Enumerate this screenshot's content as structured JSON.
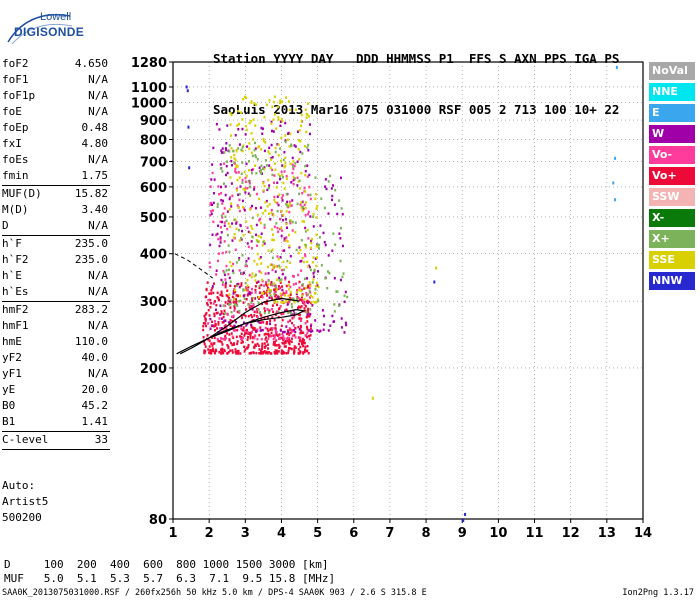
{
  "logo": {
    "line1": "Lowell",
    "line2": "DIGISONDE"
  },
  "header": {
    "line1": "Station YYYY DAY   DDD HHMMSS P1  FFS S AXN PPS IGA PS",
    "line2": "SaoLuis 2013 Mar16 075 031000 RSF 005 2 713 100 10+ 22"
  },
  "params": {
    "group1": [
      {
        "key": "foF2",
        "value": "4.650"
      },
      {
        "key": "foF1",
        "value": "N/A"
      },
      {
        "key": "foF1p",
        "value": "N/A"
      },
      {
        "key": "foE",
        "value": "N/A"
      },
      {
        "key": "foEp",
        "value": "0.48"
      },
      {
        "key": "fxI",
        "value": "4.80"
      },
      {
        "key": "foEs",
        "value": "N/A"
      },
      {
        "key": "fmin",
        "value": "1.75"
      }
    ],
    "group2": [
      {
        "key": "MUF(D)",
        "value": "15.82"
      },
      {
        "key": "M(D)",
        "value": "3.40"
      },
      {
        "key": "D",
        "value": "N/A"
      }
    ],
    "group3": [
      {
        "key": "h`F",
        "value": "235.0"
      },
      {
        "key": "h`F2",
        "value": "235.0"
      },
      {
        "key": "h`E",
        "value": "N/A"
      },
      {
        "key": "h`Es",
        "value": "N/A"
      }
    ],
    "group4": [
      {
        "key": "hmF2",
        "value": "283.2"
      },
      {
        "key": "hmF1",
        "value": "N/A"
      },
      {
        "key": "hmE",
        "value": "110.0"
      },
      {
        "key": "yF2",
        "value": "40.0"
      },
      {
        "key": "yF1",
        "value": "N/A"
      },
      {
        "key": "yE",
        "value": "20.0"
      },
      {
        "key": "B0",
        "value": "45.2"
      },
      {
        "key": "B1",
        "value": "1.41"
      }
    ],
    "clevel": {
      "key": "C-level",
      "value": "33"
    }
  },
  "auto": {
    "line1": "Auto:",
    "line2": "Artist5",
    "line3": "500200"
  },
  "legend": [
    {
      "label": "NoVal",
      "color": "#a8a8a8"
    },
    {
      "label": "NNE",
      "color": "#00e6f0"
    },
    {
      "label": "E",
      "color": "#3aa6ee"
    },
    {
      "label": "W",
      "color": "#a000a8"
    },
    {
      "label": "Vo-",
      "color": "#ff3c9c"
    },
    {
      "label": "Vo+",
      "color": "#ee0a38"
    },
    {
      "label": "SSW",
      "color": "#f4b4b4"
    },
    {
      "label": "X-",
      "color": "#0a7a0a"
    },
    {
      "label": "X+",
      "color": "#7cb25a"
    },
    {
      "label": "SSE",
      "color": "#d8d000"
    },
    {
      "label": "NNW",
      "color": "#2828d0"
    }
  ],
  "bottom": {
    "line1": "D     100  200  400  600  800 1000 1500 3000 [km]",
    "line2": "MUF   5.0  5.1  5.3  5.7  6.3  7.1  9.5 15.8 [MHz]"
  },
  "footer": {
    "left": "SAA0K_2013075031000.RSF / 260fx256h 50 kHz 5.0 km / DPS-4 SAA0K 903 / 2.6 S 315.8 E",
    "right": "Ion2Png 1.3.17"
  },
  "chart_data": {
    "type": "scatter",
    "title": "",
    "xlabel": "",
    "ylabel": "",
    "xlim": [
      1,
      14
    ],
    "ylim": [
      80,
      1280
    ],
    "yscale": "log",
    "x_ticks": [
      1,
      2,
      3,
      4,
      5,
      6,
      7,
      8,
      9,
      10,
      11,
      12,
      13,
      14
    ],
    "y_ticks": [
      80,
      200,
      300,
      400,
      500,
      600,
      700,
      800,
      900,
      1000,
      1100,
      1280
    ],
    "grid": true,
    "legend_position": "right",
    "profile_curve": [
      [
        1.1,
        218
      ],
      [
        1.5,
        228
      ],
      [
        2.0,
        240
      ],
      [
        2.5,
        252
      ],
      [
        3.0,
        262
      ],
      [
        3.5,
        272
      ],
      [
        4.0,
        280
      ],
      [
        4.4,
        285
      ],
      [
        4.62,
        283
      ],
      [
        4.4,
        276
      ],
      [
        4.0,
        272
      ],
      [
        3.5,
        268
      ],
      [
        3.0,
        262
      ],
      [
        2.5,
        250
      ],
      [
        2.0,
        240
      ]
    ],
    "trace_curve": [
      [
        1.2,
        218
      ],
      [
        1.6,
        228
      ],
      [
        2.0,
        240
      ],
      [
        2.5,
        258
      ],
      [
        3.0,
        280
      ],
      [
        3.5,
        298
      ],
      [
        4.0,
        305
      ],
      [
        4.5,
        300
      ]
    ],
    "dashed_extrapolation": [
      [
        1.05,
        400
      ],
      [
        1.4,
        385
      ],
      [
        1.8,
        362
      ],
      [
        2.1,
        345
      ]
    ],
    "series": [
      {
        "name": "Vo+",
        "cluster": {
          "x": [
            1.8,
            4.8
          ],
          "y": [
            220,
            340
          ]
        }
      },
      {
        "name": "Vo-",
        "cluster": {
          "x": [
            1.9,
            4.8
          ],
          "y": [
            240,
            700
          ]
        }
      },
      {
        "name": "W",
        "cluster": {
          "x": [
            2.0,
            5.8
          ],
          "y": [
            250,
            900
          ]
        }
      },
      {
        "name": "SSE",
        "cluster": {
          "x": [
            2.5,
            5.0
          ],
          "y": [
            300,
            1050
          ]
        }
      },
      {
        "name": "X+",
        "cluster": {
          "x": [
            2.2,
            5.8
          ],
          "y": [
            280,
            800
          ]
        }
      },
      {
        "name": "NNW",
        "isolated": [
          [
            1.35,
            1110
          ],
          [
            1.38,
            1085
          ],
          [
            1.4,
            870
          ],
          [
            1.42,
            680
          ],
          [
            8.2,
            340
          ],
          [
            9.0,
            80
          ],
          [
            9.05,
            83
          ]
        ]
      },
      {
        "name": "E",
        "isolated": [
          [
            13.25,
            1250
          ],
          [
            13.2,
            720
          ],
          [
            13.15,
            620
          ],
          [
            13.2,
            560
          ]
        ]
      },
      {
        "name": "SSE_isolated",
        "isolated": [
          [
            6.5,
            168
          ],
          [
            8.25,
            370
          ]
        ]
      }
    ]
  }
}
